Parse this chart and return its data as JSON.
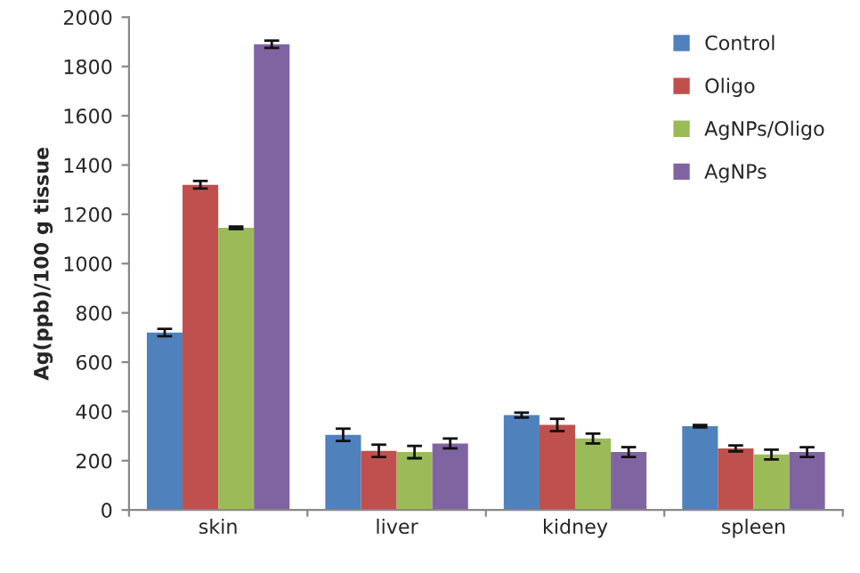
{
  "chart_data": {
    "type": "bar",
    "ylabel": "Ag(ppb)/100 g tissue",
    "categories": [
      "skin",
      "liver",
      "kidney",
      "spleen"
    ],
    "series": [
      {
        "name": "Control",
        "color": "#4f81bd",
        "values": [
          720,
          305,
          385,
          340
        ],
        "errors": [
          15,
          25,
          10,
          5
        ]
      },
      {
        "name": "Oligo",
        "color": "#c0504d",
        "values": [
          1320,
          240,
          345,
          250
        ],
        "errors": [
          15,
          25,
          25,
          12
        ]
      },
      {
        "name": "AgNPs/Oligo",
        "color": "#9bbb59",
        "values": [
          1145,
          235,
          290,
          225
        ],
        "errors": [
          5,
          25,
          20,
          20
        ]
      },
      {
        "name": "AgNPs",
        "color": "#8064a2",
        "values": [
          1890,
          270,
          235,
          235
        ],
        "errors": [
          15,
          20,
          20,
          20
        ]
      }
    ],
    "ylim": [
      0,
      2000
    ],
    "yticks": [
      0,
      200,
      400,
      600,
      800,
      1000,
      1200,
      1400,
      1600,
      1800,
      2000
    ],
    "grid": false,
    "legend": "top right"
  }
}
